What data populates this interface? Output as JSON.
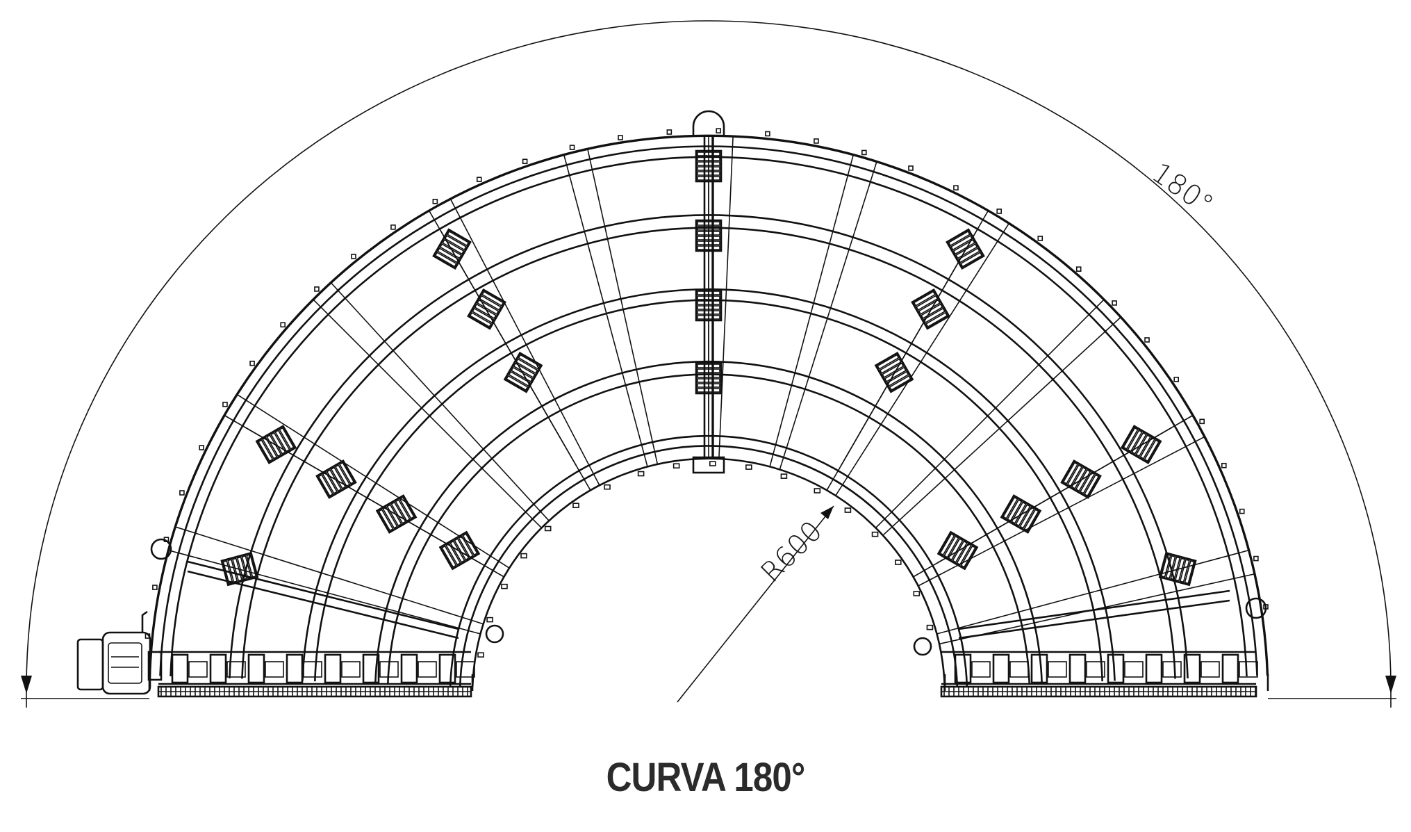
{
  "title": "CURVA 180°",
  "dimensions": {
    "angle_label": "180°",
    "radius_label": "R600"
  },
  "colors": {
    "line": "#111111",
    "title": "#2b2b2b",
    "background": "#ffffff"
  }
}
